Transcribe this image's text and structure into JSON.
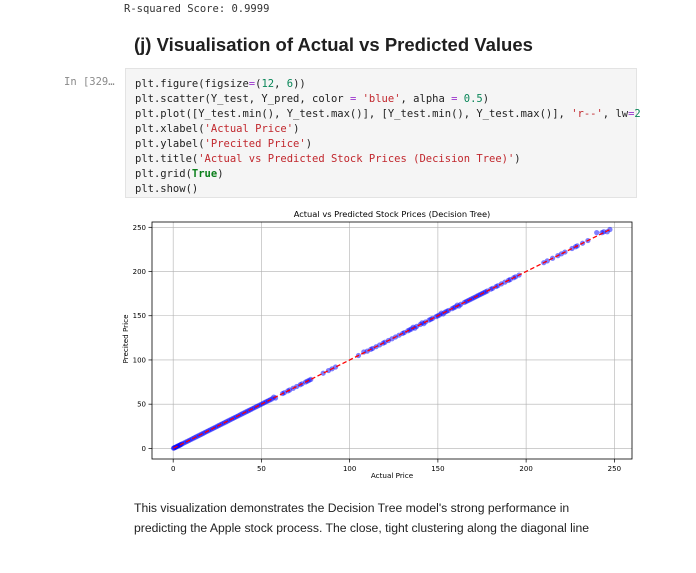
{
  "previous_output": "R-squared Score: 0.9999",
  "section_heading": "(j) Visualisation of Actual vs Predicted Values",
  "cell": {
    "prompt": "In [329…",
    "code_lines": [
      [
        [
          "plt.figure(figsize",
          "name"
        ],
        [
          "=",
          "op"
        ],
        [
          "(",
          "name"
        ],
        [
          "12",
          "num"
        ],
        [
          ", ",
          "name"
        ],
        [
          "6",
          "num"
        ],
        [
          "))",
          "name"
        ]
      ],
      [
        [
          "plt.scatter(Y_test, Y_pred, color ",
          "name"
        ],
        [
          "=",
          "op"
        ],
        [
          " ",
          "name"
        ],
        [
          "'blue'",
          "str"
        ],
        [
          ", alpha ",
          "name"
        ],
        [
          "=",
          "op"
        ],
        [
          " ",
          "name"
        ],
        [
          "0.5",
          "num"
        ],
        [
          ")",
          "name"
        ]
      ],
      [
        [
          "plt.plot([Y_test.min(), Y_test.max()], [Y_test.min(), Y_test.max()], ",
          "name"
        ],
        [
          "'r--'",
          "str"
        ],
        [
          ", lw",
          "name"
        ],
        [
          "=",
          "op"
        ],
        [
          "2",
          "num"
        ]
      ],
      [
        [
          "plt.xlabel(",
          "name"
        ],
        [
          "'Actual Price'",
          "str"
        ],
        [
          ")",
          "name"
        ]
      ],
      [
        [
          "plt.ylabel(",
          "name"
        ],
        [
          "'Precited Price'",
          "str"
        ],
        [
          ")",
          "name"
        ]
      ],
      [
        [
          "plt.title(",
          "name"
        ],
        [
          "'Actual vs Predicted Stock Prices (Decision Tree)'",
          "str"
        ],
        [
          ")",
          "name"
        ]
      ],
      [
        [
          "plt.grid(",
          "name"
        ],
        [
          "True",
          "kw"
        ],
        [
          ")",
          "name"
        ]
      ],
      [
        [
          "plt.show()",
          "name"
        ]
      ]
    ]
  },
  "chart_data": {
    "type": "scatter",
    "title": "Actual vs Predicted Stock Prices (Decision Tree)",
    "xlabel": "Actual Price",
    "ylabel": "Precited Price",
    "xlim": [
      -12,
      260
    ],
    "ylim": [
      -12,
      256
    ],
    "xticks": [
      0,
      50,
      100,
      150,
      200,
      250
    ],
    "yticks": [
      0,
      50,
      100,
      150,
      200,
      250
    ],
    "grid": true,
    "point_color": "#0000ff",
    "point_alpha": 0.5,
    "line_color": "#ff0000",
    "reference_line": {
      "style": "dashed",
      "from": [
        0.2,
        0.2
      ],
      "to": [
        247.5,
        247.5
      ]
    },
    "series": [
      {
        "points": [
          [
            0.2,
            0.2
          ],
          [
            0.5,
            0.6
          ],
          [
            1,
            1
          ],
          [
            1.5,
            1.4
          ],
          [
            2,
            2
          ],
          [
            2.5,
            2.6
          ],
          [
            3,
            3
          ],
          [
            3.5,
            3.4
          ],
          [
            4,
            4
          ],
          [
            4.5,
            4.6
          ],
          [
            5,
            5
          ],
          [
            6,
            6
          ],
          [
            7,
            7
          ],
          [
            8,
            8
          ],
          [
            9,
            9
          ],
          [
            10,
            10
          ],
          [
            11,
            11
          ],
          [
            12,
            12
          ],
          [
            13,
            13
          ],
          [
            14,
            14
          ],
          [
            15,
            15
          ],
          [
            16,
            16
          ],
          [
            17,
            17
          ],
          [
            18,
            18
          ],
          [
            19,
            19
          ],
          [
            20,
            20
          ],
          [
            21,
            21
          ],
          [
            22,
            22
          ],
          [
            23,
            23
          ],
          [
            24,
            24
          ],
          [
            25,
            25
          ],
          [
            26,
            26
          ],
          [
            27,
            27
          ],
          [
            28,
            28
          ],
          [
            29,
            29
          ],
          [
            30,
            30
          ],
          [
            31,
            31
          ],
          [
            32,
            32
          ],
          [
            33,
            33
          ],
          [
            34,
            34
          ],
          [
            35,
            35
          ],
          [
            36,
            36
          ],
          [
            37,
            37
          ],
          [
            38,
            38
          ],
          [
            39,
            39
          ],
          [
            40,
            40
          ],
          [
            41,
            41
          ],
          [
            42,
            42
          ],
          [
            43,
            43
          ],
          [
            44,
            44
          ],
          [
            45,
            45
          ],
          [
            46,
            46
          ],
          [
            47,
            47
          ],
          [
            48,
            48
          ],
          [
            49,
            49
          ],
          [
            50,
            50
          ],
          [
            51,
            51
          ],
          [
            52,
            52
          ],
          [
            53,
            53
          ],
          [
            54,
            54
          ],
          [
            55,
            55
          ],
          [
            56,
            56
          ],
          [
            57,
            58
          ],
          [
            58,
            57
          ],
          [
            62,
            62
          ],
          [
            63,
            63
          ],
          [
            65,
            65
          ],
          [
            66,
            66
          ],
          [
            68,
            68
          ],
          [
            70,
            70
          ],
          [
            72,
            72
          ],
          [
            73,
            73
          ],
          [
            75,
            75
          ],
          [
            76,
            76
          ],
          [
            77,
            77
          ],
          [
            78,
            78
          ],
          [
            85,
            85
          ],
          [
            88,
            88
          ],
          [
            90,
            90
          ],
          [
            92,
            92
          ],
          [
            105,
            105
          ],
          [
            108,
            109
          ],
          [
            110,
            110
          ],
          [
            112,
            112
          ],
          [
            113,
            113
          ],
          [
            115,
            115
          ],
          [
            117,
            117
          ],
          [
            119,
            119
          ],
          [
            120,
            120
          ],
          [
            122,
            122
          ],
          [
            124,
            124
          ],
          [
            126,
            126
          ],
          [
            128,
            128
          ],
          [
            130,
            130
          ],
          [
            131,
            131
          ],
          [
            133,
            133
          ],
          [
            134,
            134
          ],
          [
            135,
            135
          ],
          [
            136,
            137
          ],
          [
            137,
            136
          ],
          [
            138,
            138
          ],
          [
            140,
            140
          ],
          [
            141,
            142
          ],
          [
            142,
            141
          ],
          [
            143,
            143
          ],
          [
            145,
            145
          ],
          [
            146,
            146
          ],
          [
            147,
            147
          ],
          [
            149,
            149
          ],
          [
            150,
            150
          ],
          [
            151,
            151
          ],
          [
            152,
            153
          ],
          [
            153,
            152
          ],
          [
            154,
            154
          ],
          [
            155,
            155
          ],
          [
            156,
            156
          ],
          [
            158,
            158
          ],
          [
            159,
            159
          ],
          [
            160,
            160
          ],
          [
            161,
            162
          ],
          [
            162,
            161
          ],
          [
            163,
            163
          ],
          [
            165,
            165
          ],
          [
            166,
            166
          ],
          [
            167,
            167
          ],
          [
            168,
            168
          ],
          [
            169,
            169
          ],
          [
            170,
            170
          ],
          [
            171,
            171
          ],
          [
            172,
            172
          ],
          [
            173,
            173
          ],
          [
            174,
            174
          ],
          [
            175,
            175
          ],
          [
            176,
            176
          ],
          [
            177,
            177
          ],
          [
            178,
            178
          ],
          [
            180,
            180
          ],
          [
            181,
            181
          ],
          [
            183,
            183
          ],
          [
            184,
            184
          ],
          [
            186,
            186
          ],
          [
            188,
            188
          ],
          [
            190,
            190
          ],
          [
            191,
            191
          ],
          [
            193,
            193
          ],
          [
            194,
            194
          ],
          [
            196,
            196
          ],
          [
            210,
            210
          ],
          [
            212,
            212
          ],
          [
            215,
            215
          ],
          [
            218,
            218
          ],
          [
            220,
            220
          ],
          [
            222,
            222
          ],
          [
            226,
            226
          ],
          [
            228,
            228
          ],
          [
            229,
            229
          ],
          [
            232,
            232
          ],
          [
            235,
            235
          ],
          [
            240,
            244
          ],
          [
            243,
            244
          ],
          [
            244,
            245
          ],
          [
            246,
            245
          ],
          [
            247.5,
            247.5
          ]
        ]
      }
    ]
  },
  "explanation": "This visualization demonstrates the Decision Tree model's strong performance in predicting the Apple stock process. The close, tight clustering along the diagonal line"
}
